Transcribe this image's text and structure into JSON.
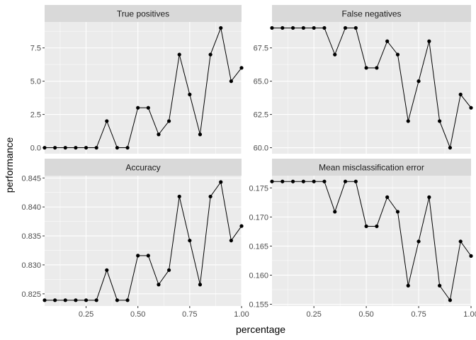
{
  "chart_data": {
    "type": "line",
    "xlabel": "percentage",
    "ylabel": "performance",
    "colors": {
      "panel_bg": "#EBEBEB",
      "strip_bg": "#D9D9D9",
      "grid": "#FFFFFF",
      "line": "#000000",
      "point": "#000000"
    },
    "x": [
      0.05,
      0.1,
      0.15,
      0.2,
      0.25,
      0.3,
      0.35,
      0.4,
      0.45,
      0.5,
      0.55,
      0.6,
      0.65,
      0.7,
      0.75,
      0.8,
      0.85,
      0.9,
      0.95,
      1.0
    ],
    "xlim": [
      0.05,
      1.0
    ],
    "xticks": [
      0.25,
      0.5,
      0.75,
      1.0
    ],
    "xtick_labels": [
      "0.25",
      "0.50",
      "0.75",
      "1.00"
    ],
    "panels": [
      {
        "title": "True positives",
        "values": [
          0,
          0,
          0,
          0,
          0,
          0,
          2,
          0,
          0,
          3,
          3,
          1,
          2,
          7,
          4,
          1,
          7,
          9,
          5,
          6
        ],
        "ylim": [
          -0.45,
          9.45
        ],
        "yticks": [
          0,
          2.5,
          5,
          7.5
        ],
        "ytick_labels": [
          "0.0",
          "2.5",
          "5.0",
          "7.5"
        ]
      },
      {
        "title": "False negatives",
        "values": [
          69,
          69,
          69,
          69,
          69,
          69,
          67,
          69,
          69,
          66,
          66,
          68,
          67,
          62,
          65,
          68,
          62,
          60,
          64,
          63
        ],
        "ylim": [
          59.55,
          69.45
        ],
        "yticks": [
          60,
          62.5,
          65,
          67.5
        ],
        "ytick_labels": [
          "60.0",
          "62.5",
          "65.0",
          "67.5"
        ]
      },
      {
        "title": "Accuracy",
        "values": [
          0.8239,
          0.8239,
          0.8239,
          0.8239,
          0.8239,
          0.8239,
          0.8291,
          0.8239,
          0.8239,
          0.8316,
          0.8316,
          0.8266,
          0.8291,
          0.8418,
          0.8342,
          0.8266,
          0.8418,
          0.8443,
          0.8342,
          0.8367
        ],
        "ylim": [
          0.8229,
          0.8454
        ],
        "yticks": [
          0.825,
          0.83,
          0.835,
          0.84,
          0.845
        ],
        "ytick_labels": [
          "0.825",
          "0.830",
          "0.835",
          "0.840",
          "0.845"
        ]
      },
      {
        "title": "Mean misclassification error",
        "values": [
          0.1761,
          0.1761,
          0.1761,
          0.1761,
          0.1761,
          0.1761,
          0.1709,
          0.1761,
          0.1761,
          0.1684,
          0.1684,
          0.1734,
          0.1709,
          0.1582,
          0.1658,
          0.1734,
          0.1582,
          0.1557,
          0.1658,
          0.1633
        ],
        "ylim": [
          0.1547,
          0.1771
        ],
        "yticks": [
          0.155,
          0.16,
          0.165,
          0.17,
          0.175
        ],
        "ytick_labels": [
          "0.155",
          "0.160",
          "0.165",
          "0.170",
          "0.175"
        ]
      }
    ]
  }
}
